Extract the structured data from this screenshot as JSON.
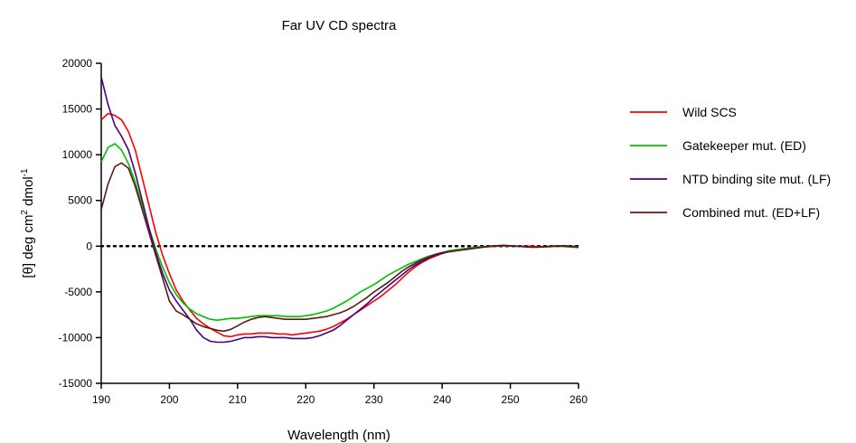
{
  "chart_data": {
    "type": "line",
    "title": "Far UV CD spectra",
    "xlabel": "Wavelength (nm)",
    "ylabel_main": "[θ] deg cm",
    "ylabel_sup1": "2",
    "ylabel_mid": " dmol",
    "ylabel_sup2": "-1",
    "xlim": [
      190,
      260
    ],
    "ylim": [
      -15000,
      20000
    ],
    "x_ticks": [
      190,
      200,
      210,
      220,
      230,
      240,
      250,
      260
    ],
    "y_ticks": [
      -15000,
      -10000,
      -5000,
      0,
      5000,
      10000,
      15000,
      20000
    ],
    "zero_line": "dotted",
    "grid": false,
    "legend_position": "right",
    "series": [
      {
        "name": "Wild SCS",
        "color": "#ff0000",
        "x": [
          190,
          191,
          192,
          193,
          194,
          195,
          196,
          197,
          198,
          199,
          200,
          201,
          202,
          203,
          204,
          205,
          206,
          207,
          208,
          209,
          210,
          211,
          212,
          213,
          214,
          215,
          216,
          217,
          218,
          219,
          220,
          221,
          222,
          223,
          224,
          225,
          226,
          227,
          228,
          229,
          230,
          231,
          232,
          233,
          234,
          235,
          236,
          237,
          238,
          239,
          240,
          241,
          242,
          243,
          244,
          245,
          246,
          247,
          248,
          249,
          250,
          251,
          252,
          253,
          254,
          255,
          256,
          257,
          258,
          259,
          260
        ],
        "y": [
          13800,
          14500,
          14300,
          13800,
          12500,
          10500,
          7500,
          4500,
          1500,
          -1000,
          -3000,
          -4800,
          -6000,
          -7000,
          -7900,
          -8500,
          -9000,
          -9400,
          -9800,
          -9900,
          -9700,
          -9600,
          -9600,
          -9500,
          -9500,
          -9500,
          -9600,
          -9600,
          -9700,
          -9600,
          -9500,
          -9400,
          -9300,
          -9100,
          -8800,
          -8400,
          -8000,
          -7500,
          -7000,
          -6500,
          -6000,
          -5500,
          -4900,
          -4300,
          -3600,
          -2900,
          -2300,
          -1800,
          -1400,
          -1100,
          -800,
          -600,
          -500,
          -400,
          -300,
          -200,
          -100,
          -50,
          0,
          50,
          50,
          0,
          0,
          0,
          -50,
          -50,
          -50,
          0,
          0,
          -50,
          -100
        ]
      },
      {
        "name": "Gatekeeper mut. (ED)",
        "color": "#00c000",
        "x": [
          190,
          191,
          192,
          193,
          194,
          195,
          196,
          197,
          198,
          199,
          200,
          201,
          202,
          203,
          204,
          205,
          206,
          207,
          208,
          209,
          210,
          211,
          212,
          213,
          214,
          215,
          216,
          217,
          218,
          219,
          220,
          221,
          222,
          223,
          224,
          225,
          226,
          227,
          228,
          229,
          230,
          231,
          232,
          233,
          234,
          235,
          236,
          237,
          238,
          239,
          240,
          241,
          242,
          243,
          244,
          245,
          246,
          247,
          248,
          249,
          250,
          251,
          252,
          253,
          254,
          255,
          256,
          257,
          258,
          259,
          260
        ],
        "y": [
          9200,
          10800,
          11200,
          10500,
          9000,
          7000,
          4500,
          2000,
          -300,
          -2300,
          -4000,
          -5300,
          -6200,
          -6900,
          -7400,
          -7700,
          -8000,
          -8100,
          -8000,
          -7900,
          -7900,
          -7800,
          -7700,
          -7600,
          -7600,
          -7600,
          -7600,
          -7700,
          -7700,
          -7700,
          -7600,
          -7500,
          -7300,
          -7100,
          -6800,
          -6400,
          -6000,
          -5500,
          -5000,
          -4600,
          -4200,
          -3700,
          -3200,
          -2800,
          -2400,
          -2000,
          -1700,
          -1400,
          -1100,
          -900,
          -700,
          -500,
          -400,
          -300,
          -200,
          -100,
          -50,
          0,
          50,
          50,
          0,
          0,
          -50,
          -100,
          -100,
          -100,
          -50,
          0,
          -50,
          -100,
          -150
        ]
      },
      {
        "name": "NTD binding site mut. (LF)",
        "color": "#4b0082",
        "x": [
          190,
          191,
          192,
          193,
          194,
          195,
          196,
          197,
          198,
          199,
          200,
          201,
          202,
          203,
          204,
          205,
          206,
          207,
          208,
          209,
          210,
          211,
          212,
          213,
          214,
          215,
          216,
          217,
          218,
          219,
          220,
          221,
          222,
          223,
          224,
          225,
          226,
          227,
          228,
          229,
          230,
          231,
          232,
          233,
          234,
          235,
          236,
          237,
          238,
          239,
          240,
          241,
          242,
          243,
          244,
          245,
          246,
          247,
          248,
          249,
          250,
          251,
          252,
          253,
          254,
          255,
          256,
          257,
          258,
          259,
          260
        ],
        "y": [
          18500,
          15500,
          13200,
          12000,
          10500,
          8000,
          5000,
          2000,
          -700,
          -3000,
          -4800,
          -6000,
          -7000,
          -8000,
          -9200,
          -10000,
          -10400,
          -10500,
          -10500,
          -10400,
          -10200,
          -10000,
          -10000,
          -9900,
          -9900,
          -10000,
          -10000,
          -10000,
          -10100,
          -10100,
          -10100,
          -10000,
          -9800,
          -9500,
          -9200,
          -8700,
          -8100,
          -7500,
          -6900,
          -6300,
          -5600,
          -5000,
          -4400,
          -3800,
          -3200,
          -2600,
          -2100,
          -1700,
          -1300,
          -1000,
          -800,
          -600,
          -500,
          -400,
          -300,
          -200,
          -100,
          0,
          50,
          50,
          50,
          0,
          -50,
          -100,
          -100,
          -50,
          0,
          0,
          50,
          0,
          -50
        ]
      },
      {
        "name": "Combined mut. (ED+LF)",
        "color": "#5c1a14",
        "x": [
          190,
          191,
          192,
          193,
          194,
          195,
          196,
          197,
          198,
          199,
          200,
          201,
          202,
          203,
          204,
          205,
          206,
          207,
          208,
          209,
          210,
          211,
          212,
          213,
          214,
          215,
          216,
          217,
          218,
          219,
          220,
          221,
          222,
          223,
          224,
          225,
          226,
          227,
          228,
          229,
          230,
          231,
          232,
          233,
          234,
          235,
          236,
          237,
          238,
          239,
          240,
          241,
          242,
          243,
          244,
          245,
          246,
          247,
          248,
          249,
          250,
          251,
          252,
          253,
          254,
          255,
          256,
          257,
          258,
          259,
          260
        ],
        "y": [
          4000,
          6800,
          8700,
          9100,
          8500,
          6500,
          4000,
          1500,
          -1000,
          -3500,
          -6000,
          -7100,
          -7500,
          -8000,
          -8500,
          -8800,
          -9000,
          -9200,
          -9300,
          -9100,
          -8700,
          -8300,
          -8000,
          -7800,
          -7700,
          -7800,
          -7900,
          -8000,
          -8000,
          -8000,
          -8000,
          -7900,
          -7800,
          -7700,
          -7500,
          -7300,
          -7000,
          -6600,
          -6100,
          -5600,
          -5000,
          -4500,
          -4000,
          -3400,
          -2800,
          -2300,
          -1900,
          -1500,
          -1200,
          -900,
          -700,
          -600,
          -500,
          -400,
          -300,
          -200,
          -100,
          0,
          50,
          100,
          50,
          0,
          -50,
          -100,
          -100,
          -50,
          0,
          50,
          0,
          -50,
          -100
        ]
      }
    ]
  }
}
